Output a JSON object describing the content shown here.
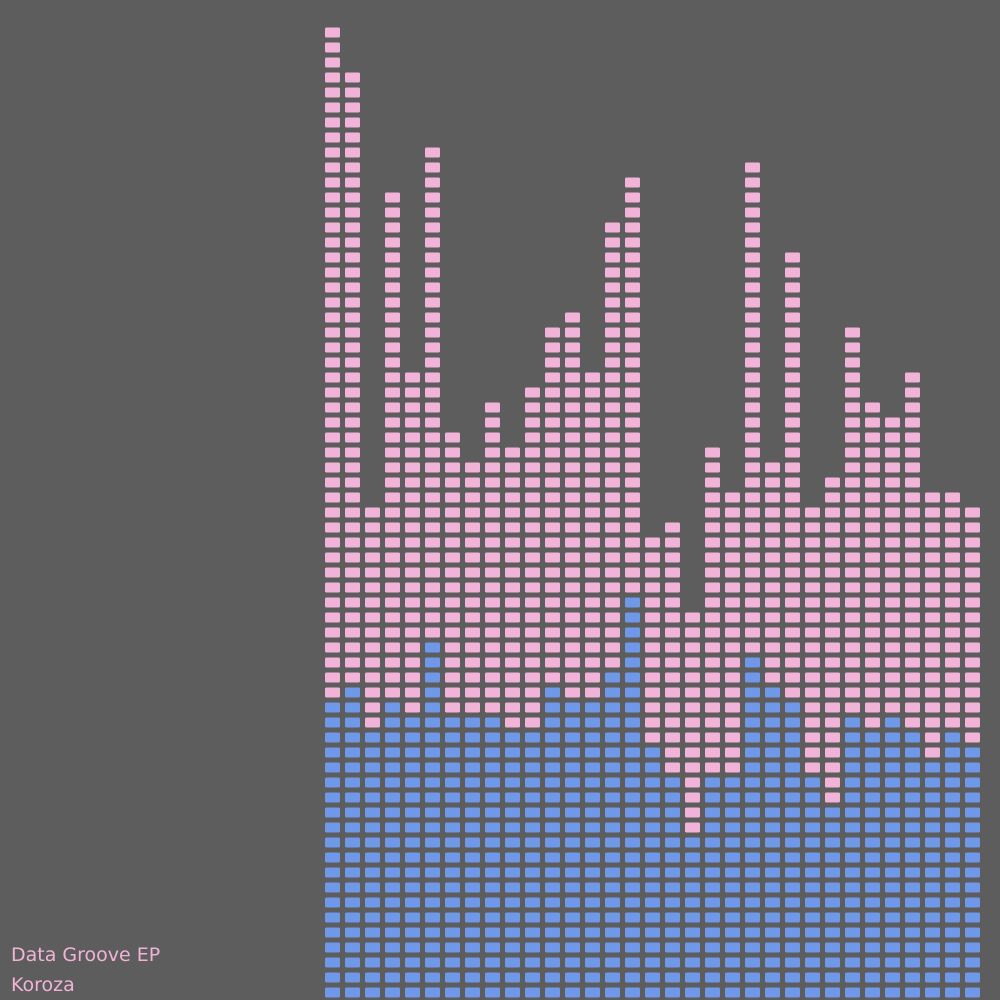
{
  "cover": {
    "title": "Data Groove EP",
    "artist": "Koroza"
  },
  "colors": {
    "background": "#5d5d5d",
    "pink": "#f2b3d9",
    "blue": "#6f98e8",
    "caption": "#f2b3d9"
  },
  "visualizer": {
    "rows_total": 65,
    "columns": [
      {
        "blue": 20,
        "pink": 45
      },
      {
        "blue": 21,
        "pink": 41
      },
      {
        "blue": 18,
        "pink": 15
      },
      {
        "blue": 20,
        "pink": 34
      },
      {
        "blue": 19,
        "pink": 23
      },
      {
        "blue": 24,
        "pink": 33
      },
      {
        "blue": 19,
        "pink": 19
      },
      {
        "blue": 19,
        "pink": 17
      },
      {
        "blue": 19,
        "pink": 21
      },
      {
        "blue": 18,
        "pink": 19
      },
      {
        "blue": 18,
        "pink": 23
      },
      {
        "blue": 21,
        "pink": 24
      },
      {
        "blue": 20,
        "pink": 26
      },
      {
        "blue": 20,
        "pink": 22
      },
      {
        "blue": 22,
        "pink": 30
      },
      {
        "blue": 27,
        "pink": 28
      },
      {
        "blue": 17,
        "pink": 14
      },
      {
        "blue": 15,
        "pink": 17
      },
      {
        "blue": 11,
        "pink": 15
      },
      {
        "blue": 15,
        "pink": 22
      },
      {
        "blue": 15,
        "pink": 19
      },
      {
        "blue": 23,
        "pink": 33
      },
      {
        "blue": 21,
        "pink": 15
      },
      {
        "blue": 20,
        "pink": 30
      },
      {
        "blue": 15,
        "pink": 18
      },
      {
        "blue": 13,
        "pink": 22
      },
      {
        "blue": 19,
        "pink": 26
      },
      {
        "blue": 18,
        "pink": 22
      },
      {
        "blue": 19,
        "pink": 20
      },
      {
        "blue": 18,
        "pink": 24
      },
      {
        "blue": 16,
        "pink": 18
      },
      {
        "blue": 18,
        "pink": 16
      },
      {
        "blue": 17,
        "pink": 16
      }
    ]
  }
}
